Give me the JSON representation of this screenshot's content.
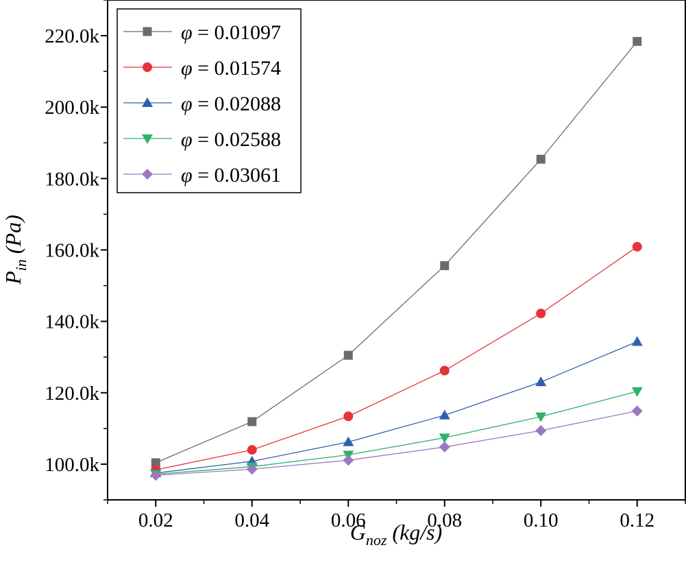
{
  "chart_data": {
    "type": "line",
    "title": "",
    "xlabel": {
      "main": "G",
      "sub": "noz",
      "rest": " (kg/s)"
    },
    "ylabel": {
      "main": "P",
      "sub": "in",
      "rest": " (Pa)"
    },
    "xlim": [
      0.01,
      0.13
    ],
    "ylim": [
      90000,
      230000
    ],
    "xticks": [
      0.02,
      0.04,
      0.06,
      0.08,
      0.1,
      0.12
    ],
    "xtick_labels": [
      "0.02",
      "0.04",
      "0.06",
      "0.08",
      "0.10",
      "0.12"
    ],
    "yticks": [
      100000,
      120000,
      140000,
      160000,
      180000,
      200000,
      220000
    ],
    "ytick_labels": [
      "100.0k",
      "120.0k",
      "140.0k",
      "160.0k",
      "180.0k",
      "200.0k",
      "220.0k"
    ],
    "x": [
      0.02,
      0.04,
      0.06,
      0.08,
      0.1,
      0.12
    ],
    "legend_position": "top-left",
    "grid": false,
    "series": [
      {
        "name": "φ = 0.01097",
        "symbol": "φ",
        "value_text": "= 0.01097",
        "color": "#6b6b6b",
        "marker": "square",
        "values": [
          100400,
          111900,
          130500,
          155600,
          185400,
          218400
        ]
      },
      {
        "name": "φ = 0.01574",
        "symbol": "φ",
        "value_text": "= 0.01574",
        "color": "#e8323a",
        "marker": "circle",
        "values": [
          98400,
          104000,
          113400,
          126200,
          142200,
          160900
        ]
      },
      {
        "name": "φ = 0.02088",
        "symbol": "φ",
        "value_text": "= 0.02088",
        "color": "#2f5fae",
        "marker": "triangle-up",
        "values": [
          97500,
          100800,
          106200,
          113700,
          123000,
          134300
        ]
      },
      {
        "name": "φ = 0.02588",
        "symbol": "φ",
        "value_text": "= 0.02588",
        "color": "#2db36a",
        "marker": "triangle-down",
        "values": [
          97200,
          99300,
          102600,
          107400,
          113300,
          120400
        ]
      },
      {
        "name": "φ = 0.03061",
        "symbol": "φ",
        "value_text": "= 0.03061",
        "color": "#9b79c2",
        "marker": "diamond",
        "values": [
          96900,
          98600,
          101100,
          104800,
          109400,
          114900
        ]
      }
    ]
  }
}
